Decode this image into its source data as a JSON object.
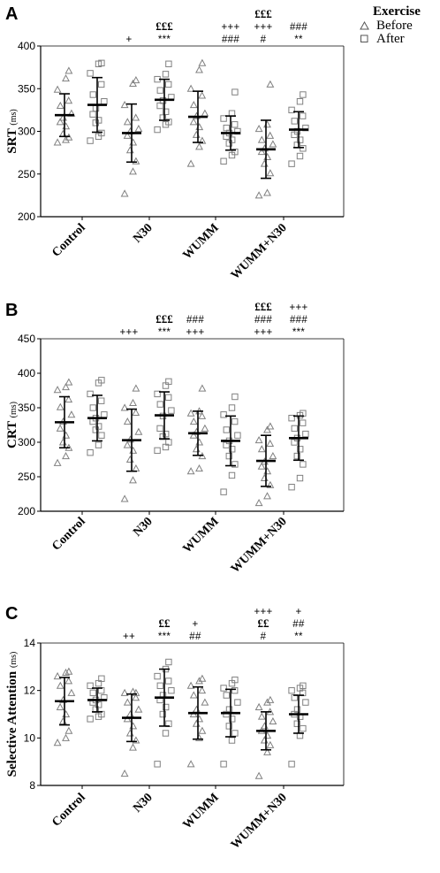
{
  "legend": {
    "title": "Exercise",
    "items": [
      {
        "label": "Before",
        "marker": "triangle"
      },
      {
        "label": "After",
        "marker": "square"
      }
    ]
  },
  "colors": {
    "marker": "#808080",
    "mean_bar": "#000000",
    "axis": "#000000"
  },
  "chart_data": [
    {
      "panel": "A",
      "type": "scatter",
      "ylabel": "SRT",
      "ylabel_unit": "(ms)",
      "ylim": [
        200,
        400
      ],
      "yticks": [
        200,
        250,
        300,
        350,
        400
      ],
      "categories": [
        "Control",
        "N30",
        "WUMM",
        "WUMM+N30"
      ],
      "series": [
        {
          "name": "Before",
          "marker": "triangle",
          "groups": [
            {
              "mean": 319,
              "sd": 25,
              "points": [
                287,
                290,
                293,
                297,
                306,
                311,
                316,
                321,
                330,
                336,
                349,
                362,
                371
              ]
            },
            {
              "mean": 298,
              "sd": 34,
              "points": [
                227,
                253,
                265,
                278,
                287,
                295,
                300,
                303,
                311,
                316,
                331,
                356,
                360
              ]
            },
            {
              "mean": 317,
              "sd": 30,
              "points": [
                262,
                282,
                289,
                296,
                305,
                311,
                318,
                321,
                331,
                342,
                350,
                372,
                380
              ]
            },
            {
              "mean": 279,
              "sd": 34,
              "points": [
                225,
                228,
                251,
                262,
                270,
                276,
                280,
                285,
                290,
                295,
                303,
                308,
                355
              ]
            }
          ]
        },
        {
          "name": "After",
          "marker": "square",
          "groups": [
            {
              "mean": 331,
              "sd": 32,
              "points": [
                289,
                294,
                298,
                310,
                313,
                320,
                327,
                335,
                343,
                355,
                368,
                379,
                380
              ]
            },
            {
              "mean": 337,
              "sd": 24,
              "points": [
                302,
                308,
                311,
                316,
                323,
                330,
                336,
                340,
                348,
                355,
                361,
                367,
                379
              ]
            },
            {
              "mean": 298,
              "sd": 20,
              "points": [
                265,
                272,
                276,
                286,
                290,
                294,
                298,
                300,
                304,
                308,
                315,
                321,
                346
              ]
            },
            {
              "mean": 302,
              "sd": 21,
              "points": [
                262,
                271,
                280,
                284,
                290,
                296,
                300,
                304,
                312,
                318,
                325,
                335,
                343
              ]
            }
          ]
        }
      ],
      "annotations": [
        {
          "cat": 1,
          "series": 0,
          "lines": [
            "+"
          ]
        },
        {
          "cat": 1,
          "series": 1,
          "lines": [
            "£££",
            "***"
          ]
        },
        {
          "cat": 2,
          "series": 0,
          "lines": [
            ""
          ]
        },
        {
          "cat": 2,
          "series": 1,
          "lines": [
            "+++",
            "###"
          ]
        },
        {
          "cat": 3,
          "series": 0,
          "lines": [
            "£££",
            "+++",
            "#"
          ]
        },
        {
          "cat": 3,
          "series": 1,
          "lines": [
            "###",
            "**"
          ]
        }
      ]
    },
    {
      "panel": "B",
      "type": "scatter",
      "ylabel": "CRT",
      "ylabel_unit": "(ms)",
      "ylim": [
        200,
        450
      ],
      "yticks": [
        200,
        250,
        300,
        350,
        400,
        450
      ],
      "categories": [
        "Control",
        "N30",
        "WUMM",
        "WUMM+N30"
      ],
      "series": [
        {
          "name": "Before",
          "marker": "triangle",
          "groups": [
            {
              "mean": 329,
              "sd": 37,
              "points": [
                270,
                280,
                292,
                300,
                310,
                320,
                330,
                340,
                351,
                362,
                376,
                380,
                387
              ]
            },
            {
              "mean": 303,
              "sd": 45,
              "points": [
                218,
                245,
                262,
                275,
                288,
                296,
                304,
                315,
                330,
                343,
                350,
                357,
                378
              ]
            },
            {
              "mean": 313,
              "sd": 32,
              "points": [
                258,
                262,
                280,
                290,
                300,
                310,
                315,
                320,
                330,
                338,
                342,
                345,
                378
              ]
            },
            {
              "mean": 273,
              "sd": 37,
              "points": [
                212,
                222,
                238,
                248,
                258,
                265,
                272,
                280,
                290,
                298,
                303,
                318,
                323
              ]
            }
          ]
        },
        {
          "name": "After",
          "marker": "square",
          "groups": [
            {
              "mean": 335,
              "sd": 33,
              "points": [
                285,
                296,
                310,
                318,
                323,
                330,
                335,
                340,
                350,
                360,
                370,
                386,
                390
              ]
            },
            {
              "mean": 339,
              "sd": 34,
              "points": [
                288,
                293,
                300,
                308,
                312,
                320,
                338,
                346,
                355,
                365,
                370,
                382,
                388
              ]
            },
            {
              "mean": 302,
              "sd": 36,
              "points": [
                228,
                252,
                268,
                280,
                290,
                296,
                302,
                310,
                318,
                330,
                340,
                350,
                366
              ]
            },
            {
              "mean": 306,
              "sd": 32,
              "points": [
                235,
                248,
                268,
                280,
                290,
                300,
                306,
                312,
                320,
                328,
                335,
                339,
                342
              ]
            }
          ]
        }
      ],
      "annotations": [
        {
          "cat": 1,
          "series": 0,
          "lines": [
            "+++"
          ]
        },
        {
          "cat": 1,
          "series": 1,
          "lines": [
            "£££",
            "***"
          ]
        },
        {
          "cat": 2,
          "series": 0,
          "lines": [
            "###",
            "+++"
          ]
        },
        {
          "cat": 2,
          "series": 1,
          "lines": [
            ""
          ]
        },
        {
          "cat": 3,
          "series": 0,
          "lines": [
            "£££",
            "###",
            "+++"
          ]
        },
        {
          "cat": 3,
          "series": 1,
          "lines": [
            "+++",
            "###",
            "***"
          ]
        }
      ]
    },
    {
      "panel": "C",
      "type": "scatter",
      "ylabel": "Selective Attention",
      "ylabel_unit": "(ms)",
      "ylim": [
        8,
        14
      ],
      "yticks": [
        8,
        10,
        12,
        14
      ],
      "categories": [
        "Control",
        "N30",
        "WUMM",
        "WUMM+N30"
      ],
      "series": [
        {
          "name": "Before",
          "marker": "triangle",
          "groups": [
            {
              "mean": 11.55,
              "sd": 1.0,
              "points": [
                9.8,
                10.0,
                10.3,
                10.7,
                11.0,
                11.3,
                11.6,
                11.9,
                12.2,
                12.4,
                12.6,
                12.75,
                12.8
              ]
            },
            {
              "mean": 10.85,
              "sd": 1.0,
              "points": [
                8.5,
                9.6,
                9.9,
                10.2,
                10.5,
                10.8,
                11.0,
                11.2,
                11.5,
                11.7,
                11.9,
                11.95,
                11.9
              ]
            },
            {
              "mean": 11.05,
              "sd": 1.1,
              "points": [
                8.9,
                10.0,
                10.3,
                10.6,
                10.8,
                11.0,
                11.2,
                11.5,
                11.8,
                12.0,
                12.2,
                12.4,
                12.5
              ]
            },
            {
              "mean": 10.3,
              "sd": 0.8,
              "points": [
                8.4,
                9.4,
                9.7,
                9.9,
                10.1,
                10.3,
                10.5,
                10.7,
                10.9,
                11.1,
                11.3,
                11.5,
                11.6
              ]
            }
          ]
        },
        {
          "name": "After",
          "marker": "square",
          "groups": [
            {
              "mean": 11.6,
              "sd": 0.5,
              "points": [
                10.8,
                10.9,
                11.0,
                11.2,
                11.4,
                11.5,
                11.6,
                11.7,
                11.9,
                12.0,
                12.2,
                12.3,
                12.5
              ]
            },
            {
              "mean": 11.7,
              "sd": 1.2,
              "points": [
                8.9,
                10.2,
                10.6,
                11.0,
                11.3,
                11.6,
                11.8,
                12.0,
                12.2,
                12.4,
                12.6,
                12.9,
                13.2
              ]
            },
            {
              "mean": 11.05,
              "sd": 1.0,
              "points": [
                8.9,
                9.9,
                10.2,
                10.5,
                10.8,
                11.0,
                11.2,
                11.5,
                11.8,
                12.0,
                12.1,
                12.3,
                12.45
              ]
            },
            {
              "mean": 11.0,
              "sd": 0.8,
              "points": [
                8.9,
                10.1,
                10.4,
                10.6,
                10.9,
                11.0,
                11.2,
                11.5,
                11.7,
                11.9,
                12.0,
                12.1,
                12.2
              ]
            }
          ]
        }
      ],
      "annotations": [
        {
          "cat": 1,
          "series": 0,
          "lines": [
            "++"
          ]
        },
        {
          "cat": 1,
          "series": 1,
          "lines": [
            "££",
            "***"
          ]
        },
        {
          "cat": 2,
          "series": 0,
          "lines": [
            "+",
            "##"
          ]
        },
        {
          "cat": 2,
          "series": 1,
          "lines": [
            ""
          ]
        },
        {
          "cat": 3,
          "series": 0,
          "lines": [
            "+++",
            "££",
            "#"
          ]
        },
        {
          "cat": 3,
          "series": 1,
          "lines": [
            "+",
            "##",
            "**"
          ]
        }
      ]
    }
  ]
}
